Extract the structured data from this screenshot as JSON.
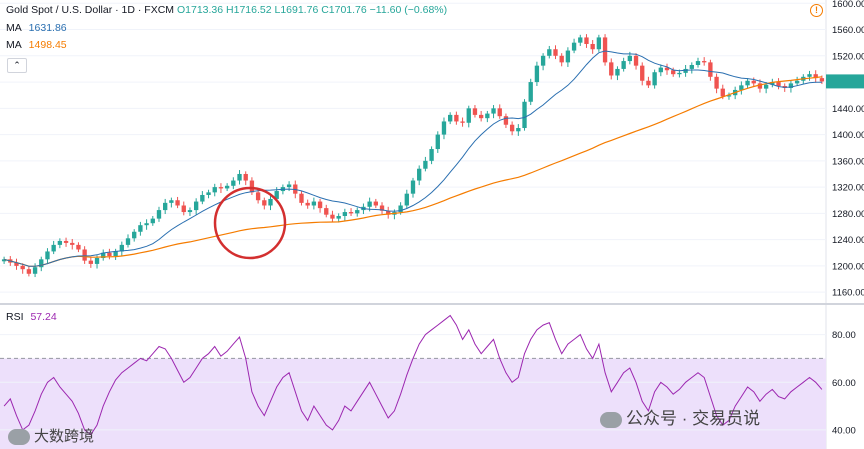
{
  "header": {
    "symbol": "Gold Spot / U.S. Dollar · 1D · FXCM",
    "open": "O1713.36",
    "high": "H1716.52",
    "low": "L1691.76",
    "close": "C1701.76",
    "change": "−11.60 (−0.68%)"
  },
  "indicators": {
    "ma1": {
      "label": "MA",
      "value": "1631.86",
      "color": "#2a6fb0"
    },
    "ma2": {
      "label": "MA",
      "value": "1498.45",
      "color": "#f57c00"
    },
    "collapse_icon": "chevron-up-icon"
  },
  "rsi": {
    "label": "RSI",
    "value": "57.24",
    "color": "#9c27b0"
  },
  "watermarks": {
    "left": "大数跨境",
    "right": "公众号 · 交易员说",
    "background": "交易员说"
  },
  "colors": {
    "up": "#26a69a",
    "down": "#ef5350",
    "circle": "#d32f2f",
    "rsi_band": "#ede0fb"
  },
  "chart_data": [
    {
      "type": "line",
      "title": "Gold Spot / U.S. Dollar · 1D · FXCM",
      "y_ticks": [
        "1160.00",
        "1200.00",
        "1240.00",
        "1280.00",
        "1320.00",
        "1360.00",
        "1400.00",
        "1440.00",
        "1480.00",
        "1520.00",
        "1560.00",
        "1600.00"
      ],
      "ylim": [
        1145,
        1605
      ],
      "series": [
        {
          "name": "Price",
          "color": "#131722",
          "values": [
            1210,
            1205,
            1200,
            1195,
            1188,
            1198,
            1210,
            1222,
            1232,
            1238,
            1235,
            1232,
            1225,
            1208,
            1203,
            1212,
            1220,
            1215,
            1222,
            1232,
            1242,
            1252,
            1262,
            1265,
            1272,
            1285,
            1296,
            1300,
            1292,
            1282,
            1285,
            1298,
            1308,
            1312,
            1320,
            1318,
            1322,
            1330,
            1340,
            1330,
            1312,
            1300,
            1292,
            1302,
            1314,
            1320,
            1324,
            1310,
            1296,
            1292,
            1298,
            1288,
            1278,
            1272,
            1276,
            1282,
            1280,
            1285,
            1290,
            1298,
            1292,
            1284,
            1278,
            1282,
            1292,
            1310,
            1330,
            1348,
            1360,
            1378,
            1400,
            1420,
            1430,
            1420,
            1418,
            1440,
            1430,
            1425,
            1432,
            1440,
            1428,
            1415,
            1405,
            1410,
            1450,
            1480,
            1505,
            1520,
            1530,
            1520,
            1510,
            1528,
            1540,
            1548,
            1538,
            1530,
            1548,
            1510,
            1490,
            1500,
            1512,
            1520,
            1505,
            1482,
            1475,
            1495,
            1502,
            1498,
            1492,
            1494,
            1500,
            1506,
            1512,
            1510,
            1488,
            1470,
            1458,
            1460,
            1468,
            1475,
            1482,
            1478,
            1470,
            1476,
            1480,
            1474,
            1471,
            1478,
            1482,
            1488,
            1492,
            1486,
            1481
          ]
        }
      ],
      "moving_averages": [
        {
          "name": "MA",
          "value": "1631.86",
          "color": "#2a6fb0"
        },
        {
          "name": "MA",
          "value": "1498.45",
          "color": "#f57c00"
        }
      ]
    },
    {
      "type": "line",
      "title": "RSI",
      "y_ticks": [
        "40.00",
        "60.00",
        "80.00"
      ],
      "ylim": [
        32,
        92
      ],
      "overbought": 70,
      "oversold": 30,
      "series": [
        {
          "name": "RSI",
          "color": "#9c27b0",
          "values": [
            50,
            53,
            46,
            40,
            42,
            48,
            55,
            60,
            62,
            58,
            55,
            52,
            47,
            40,
            38,
            42,
            50,
            56,
            61,
            64,
            66,
            68,
            70,
            69,
            72,
            75,
            74,
            70,
            65,
            60,
            62,
            66,
            70,
            72,
            75,
            71,
            73,
            76,
            79,
            70,
            56,
            50,
            46,
            52,
            58,
            62,
            64,
            56,
            48,
            44,
            50,
            46,
            42,
            40,
            44,
            50,
            48,
            52,
            56,
            60,
            55,
            50,
            45,
            48,
            55,
            63,
            70,
            76,
            80,
            82,
            84,
            86,
            88,
            84,
            78,
            82,
            76,
            72,
            75,
            78,
            70,
            64,
            60,
            62,
            72,
            78,
            82,
            84,
            85,
            78,
            72,
            76,
            78,
            80,
            74,
            70,
            76,
            64,
            56,
            60,
            64,
            66,
            60,
            52,
            48,
            56,
            60,
            58,
            55,
            57,
            60,
            62,
            64,
            62,
            54,
            46,
            42,
            44,
            50,
            54,
            58,
            56,
            52,
            55,
            57,
            54,
            53,
            56,
            58,
            60,
            62,
            60,
            57
          ]
        }
      ]
    }
  ]
}
